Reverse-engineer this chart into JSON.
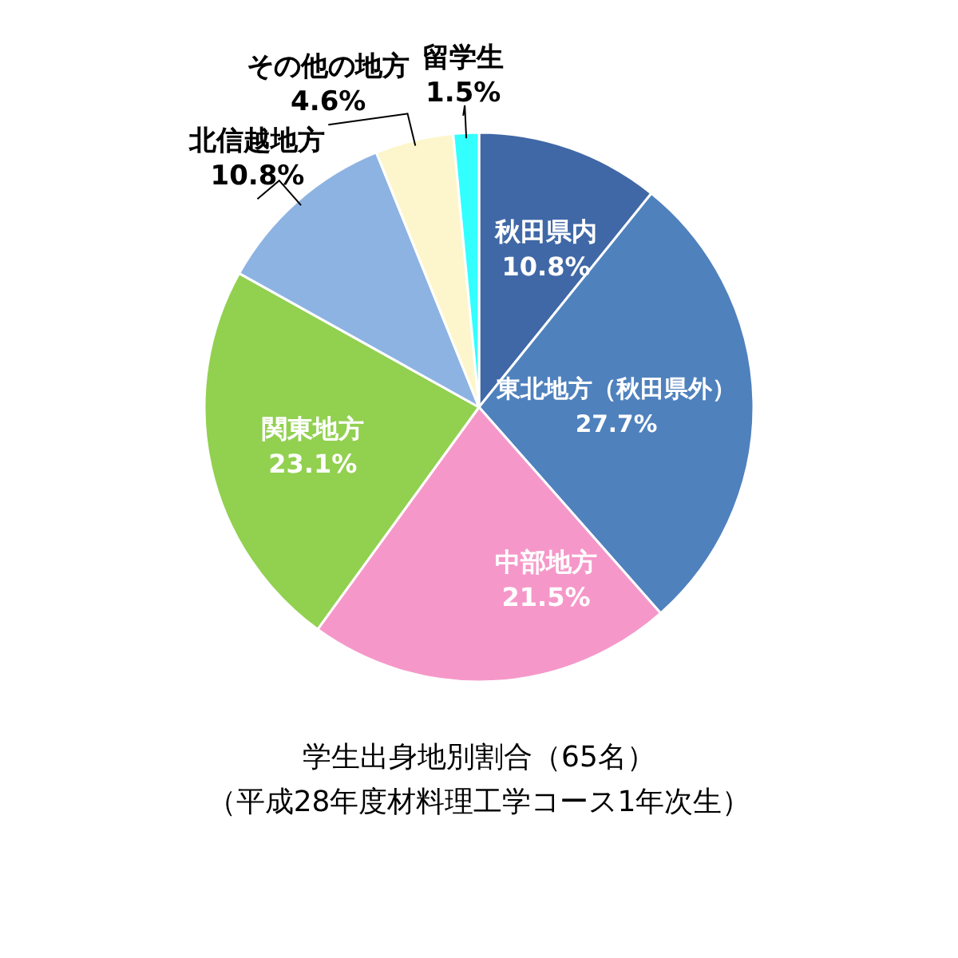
{
  "chart_data": {
    "type": "pie",
    "title": "学生出身地別割合（65名）",
    "subtitle": "（平成28年度材料理工学コース1年次生）",
    "categories": [
      "秋田県内",
      "東北地方（秋田県外）",
      "中部地方",
      "関東地方",
      "北信越地方",
      "その他の地方",
      "留学生"
    ],
    "values": [
      10.8,
      27.7,
      21.5,
      23.1,
      10.8,
      4.6,
      1.5
    ],
    "colors": [
      "#4068a6",
      "#4f81bd",
      "#f598c9",
      "#92d050",
      "#8db3e2",
      "#fdf6cc",
      "#33ffff"
    ],
    "value_labels": [
      "10.8%",
      "27.7%",
      "21.5%",
      "23.1%",
      "10.8%",
      "4.6%",
      "1.5%"
    ],
    "legend": false
  }
}
